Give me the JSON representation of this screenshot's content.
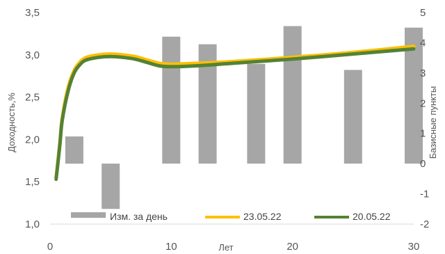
{
  "chart_data": {
    "type": "bar+line",
    "title": "",
    "xlabel": "Лет",
    "ylabel_left": "Доходность,%",
    "ylabel_right": "Базисные пункты",
    "xlim": [
      0,
      30
    ],
    "ylim_left": [
      1.0,
      3.5
    ],
    "ylim_right": [
      -2,
      5
    ],
    "x_ticks": [
      "0",
      "10",
      "20",
      "30"
    ],
    "y_left_ticks": [
      "1,0",
      "1,5",
      "2,0",
      "2,5",
      "3,0",
      "3,5"
    ],
    "y_right_ticks": [
      "-2",
      "-1",
      "0",
      "1",
      "2",
      "3",
      "4",
      "5"
    ],
    "grid": false,
    "legend_position": "bottom",
    "bars": {
      "name": "Изм. за день",
      "color": "#a6a6a6",
      "axis": "right",
      "x": [
        2,
        5,
        10,
        13,
        17,
        20,
        25,
        30
      ],
      "values": [
        0.9,
        -1.5,
        4.2,
        3.95,
        3.3,
        4.55,
        3.1,
        4.5
      ]
    },
    "series": [
      {
        "name": "23.05.22",
        "color": "#ffc000",
        "axis": "left",
        "x": [
          0.5,
          0.8,
          1,
          1.5,
          2,
          2.5,
          3,
          4,
          5,
          6,
          7,
          8,
          9,
          10,
          12,
          15,
          20,
          25,
          30
        ],
        "values": [
          1.55,
          1.95,
          2.25,
          2.62,
          2.82,
          2.92,
          2.97,
          3.0,
          3.01,
          3.0,
          2.98,
          2.94,
          2.9,
          2.89,
          2.9,
          2.92,
          2.97,
          3.03,
          3.1
        ]
      },
      {
        "name": "20.05.22",
        "color": "#548235",
        "axis": "left",
        "x": [
          0.5,
          0.8,
          1,
          1.5,
          2,
          2.5,
          3,
          4,
          5,
          6,
          7,
          8,
          9,
          10,
          12,
          15,
          20,
          25,
          30
        ],
        "values": [
          1.53,
          1.92,
          2.22,
          2.58,
          2.79,
          2.89,
          2.94,
          2.97,
          2.98,
          2.97,
          2.95,
          2.91,
          2.87,
          2.86,
          2.87,
          2.9,
          2.95,
          3.01,
          3.07
        ]
      }
    ]
  }
}
